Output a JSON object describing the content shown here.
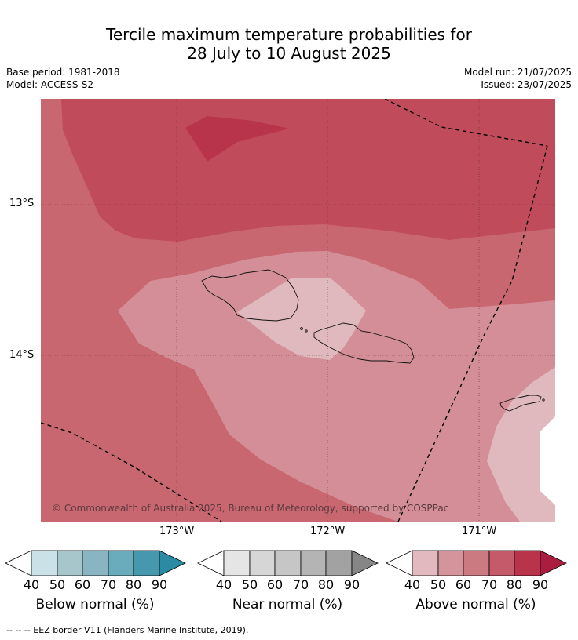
{
  "title": {
    "line1": "Tercile maximum temperature probabilities for",
    "line2": "28 July to 10 August 2025"
  },
  "meta": {
    "base_period": "Base period: 1981-2018",
    "model": "Model: ACCESS-S2",
    "model_run": "Model run: 21/07/2025",
    "issued": "Issued: 23/07/2025"
  },
  "map": {
    "copyright": "© Commonwealth of Australia 2025, Bureau of Meteorology, supported by COSPPac",
    "lat_labels": [
      "13°S",
      "14°S"
    ],
    "lon_labels": [
      "173°W",
      "172°W",
      "171°W"
    ],
    "colors": {
      "above_40": "#e0b9be",
      "above_50": "#d48e97",
      "above_60": "#c96770",
      "above_70": "#c04b5a",
      "above_80": "#b8344b"
    }
  },
  "colorbars": [
    {
      "title": "Below normal (%)",
      "ticks": [
        "40",
        "50",
        "60",
        "70",
        "80",
        "90"
      ],
      "colors": [
        "#ffffff",
        "#c9e1e7",
        "#a6c6cc",
        "#88b5c1",
        "#6aacbb",
        "#4699ad",
        "#2a8ba3"
      ]
    },
    {
      "title": "Near normal (%)",
      "ticks": [
        "40",
        "50",
        "60",
        "70",
        "80",
        "90"
      ],
      "colors": [
        "#ffffff",
        "#e5e5e5",
        "#d6d6d6",
        "#c6c6c6",
        "#b4b4b4",
        "#a2a2a2",
        "#868686"
      ]
    },
    {
      "title": "Above normal (%)",
      "ticks": [
        "40",
        "50",
        "60",
        "70",
        "80",
        "90"
      ],
      "colors": [
        "#ffffff",
        "#e1b9be",
        "#d4949b",
        "#cc7a81",
        "#c55a6a",
        "#b9334b",
        "#ab1d3e"
      ]
    }
  ],
  "footer": "-- -- -- EEZ border V11 (Flanders Marine Institute, 2019)."
}
